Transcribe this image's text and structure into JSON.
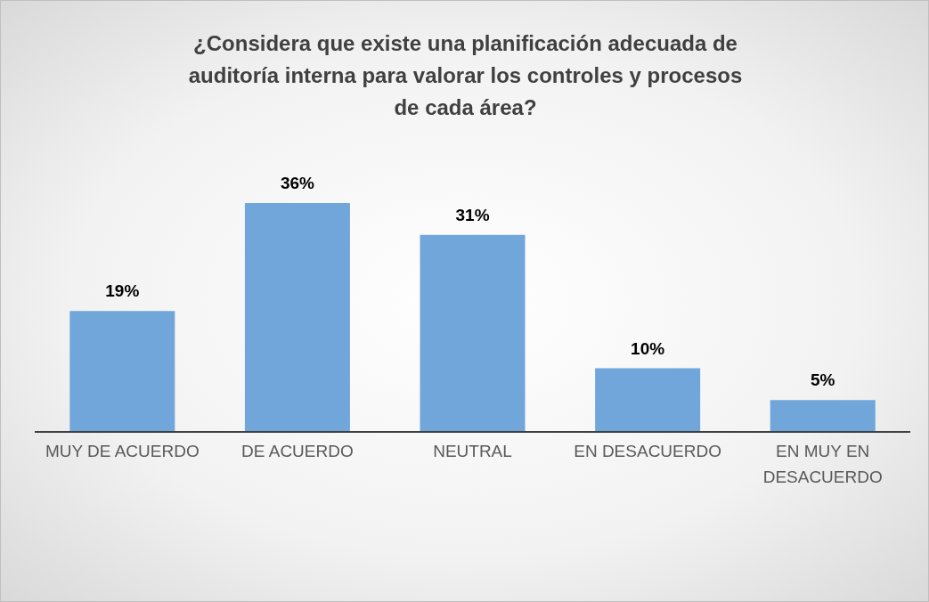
{
  "chart_data": {
    "type": "bar",
    "title": "¿Considera que existe una planificación adecuada de auditoría interna para valorar los controles y procesos de cada área?",
    "categories": [
      "MUY DE ACUERDO",
      "DE ACUERDO",
      "NEUTRAL",
      "EN DESACUERDO",
      "EN MUY EN DESACUERDO"
    ],
    "values": [
      19,
      36,
      31,
      10,
      5
    ],
    "value_labels": [
      "19%",
      "36%",
      "31%",
      "10%",
      "5%"
    ],
    "color": "#70a6da"
  }
}
